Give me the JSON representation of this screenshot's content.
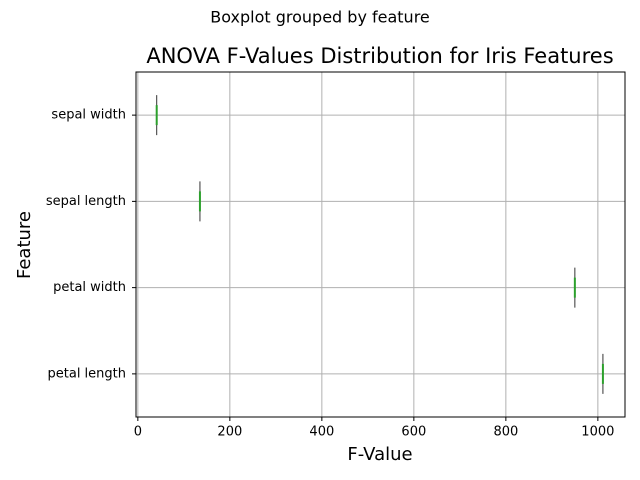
{
  "chart_data": {
    "type": "box",
    "orientation": "horizontal",
    "suptitle": "Boxplot grouped by feature",
    "title": "ANOVA F-Values Distribution for Iris Features",
    "xlabel": "F-Value",
    "ylabel": "Feature",
    "categories": [
      "sepal width",
      "sepal length",
      "petal width",
      "petal length"
    ],
    "values": [
      41,
      135,
      950,
      1011
    ],
    "color": "#2ca02c",
    "xlim": [
      -4,
      1059
    ],
    "xticks": [
      0,
      200,
      400,
      600,
      800,
      1000
    ],
    "grid": true
  }
}
